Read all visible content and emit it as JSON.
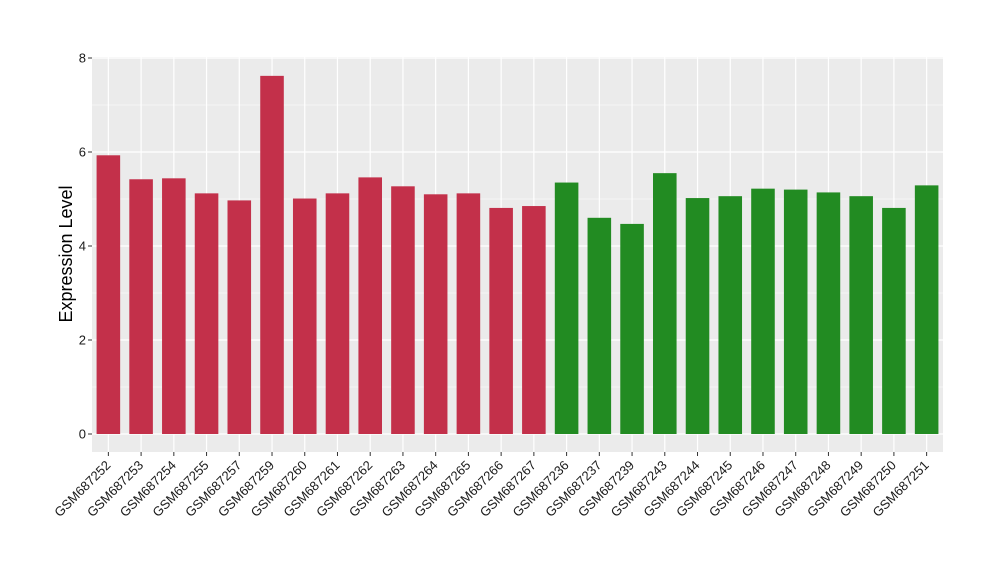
{
  "chart_data": {
    "type": "bar",
    "ylabel": "Expression Level",
    "ylim": [
      0,
      8
    ],
    "yticks": [
      0,
      2,
      4,
      6,
      8
    ],
    "grid": true,
    "colors": {
      "group1": "#C3304A",
      "group2": "#228B22",
      "panel": "#EBEBEB",
      "grid": "#FFFFFF"
    },
    "categories": [
      "GSM687252",
      "GSM687253",
      "GSM687254",
      "GSM687255",
      "GSM687257",
      "GSM687259",
      "GSM687260",
      "GSM687261",
      "GSM687262",
      "GSM687263",
      "GSM687264",
      "GSM687265",
      "GSM687266",
      "GSM687267",
      "GSM687236",
      "GSM687237",
      "GSM687239",
      "GSM687243",
      "GSM687244",
      "GSM687245",
      "GSM687246",
      "GSM687247",
      "GSM687248",
      "GSM687249",
      "GSM687250",
      "GSM687251"
    ],
    "values": [
      5.93,
      5.42,
      5.44,
      5.12,
      4.97,
      7.62,
      5.01,
      5.12,
      5.46,
      5.27,
      5.1,
      5.12,
      4.81,
      4.85,
      5.35,
      4.6,
      4.47,
      5.55,
      5.02,
      5.06,
      5.22,
      5.2,
      5.14,
      5.06,
      4.81,
      5.29
    ],
    "groups": [
      1,
      1,
      1,
      1,
      1,
      1,
      1,
      1,
      1,
      1,
      1,
      1,
      1,
      1,
      2,
      2,
      2,
      2,
      2,
      2,
      2,
      2,
      2,
      2,
      2,
      2
    ]
  }
}
